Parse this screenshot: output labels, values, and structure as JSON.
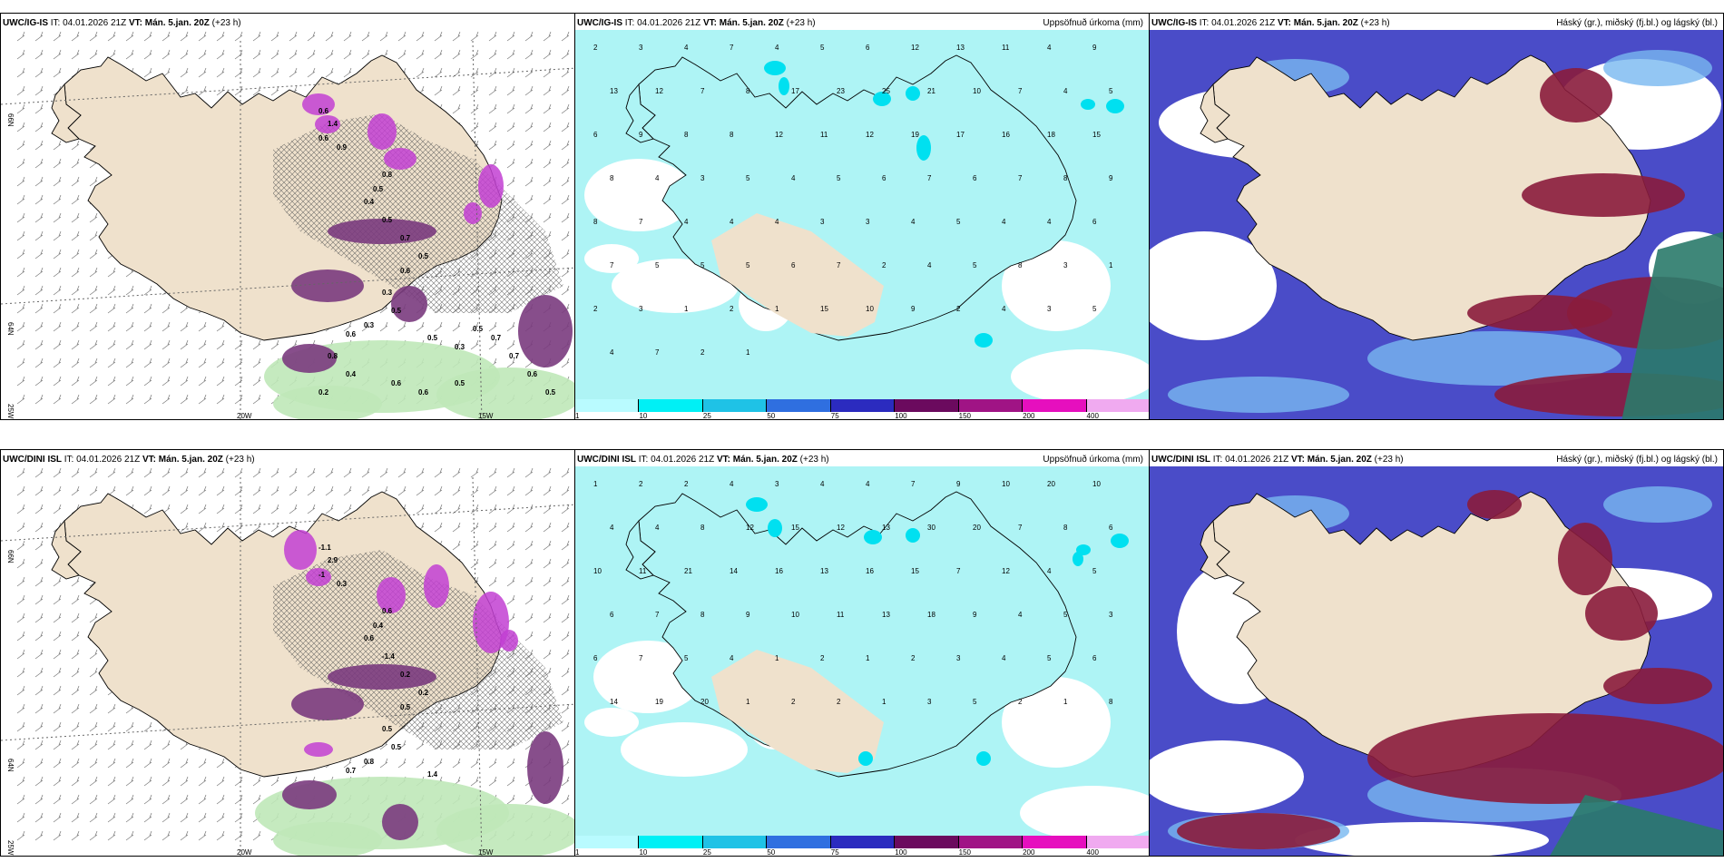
{
  "panels": {
    "top_wind": {
      "model": "UWC/IG-IS",
      "it": "IT: 04.01.2026 21Z",
      "vt": "VT: Mán. 5.jan. 20Z",
      "lead": "(+23 h)",
      "labels": [
        "66N",
        "64N",
        "25W",
        "20W",
        "15W"
      ],
      "values": [
        "0.6",
        "1.4",
        "0.6",
        "0.9",
        "0.8",
        "0.5",
        "0.4",
        "0.5",
        "0.7",
        "0.5",
        "0.6",
        "0.3",
        "0.5",
        "0.3",
        "0.6",
        "0.5",
        "0.3",
        "0.5",
        "0.7",
        "0.7",
        "0.6",
        "0.5",
        "0.8",
        "0.2",
        "0.4",
        "0.6",
        "0.6",
        "0.5"
      ]
    },
    "top_precip": {
      "model": "UWC/IG-IS",
      "it": "IT: 04.01.2026 21Z",
      "vt": "VT: Mán. 5.jan. 20Z",
      "lead": "(+23 h)",
      "title": "Uppsöfnuð úrkoma (mm)",
      "values": [
        "2",
        "3",
        "4",
        "7",
        "4",
        "5",
        "6",
        "12",
        "13",
        "11",
        "4",
        "9",
        "13",
        "12",
        "7",
        "8",
        "17",
        "23",
        "25",
        "21",
        "10",
        "7",
        "4",
        "5",
        "6",
        "9",
        "8",
        "8",
        "12",
        "11",
        "12",
        "19",
        "17",
        "16",
        "18",
        "15",
        "8",
        "4",
        "3",
        "5",
        "4",
        "5",
        "6",
        "7",
        "6",
        "7",
        "8",
        "9",
        "8",
        "7",
        "4",
        "4",
        "4",
        "3",
        "3",
        "4",
        "5",
        "4",
        "4",
        "6",
        "7",
        "5",
        "5",
        "5",
        "6",
        "7",
        "2",
        "4",
        "5",
        "8",
        "3",
        "1",
        "2",
        "3",
        "1",
        "2",
        "1",
        "15",
        "10",
        "9",
        "2",
        "4",
        "3",
        "5",
        "4",
        "7",
        "2",
        "1"
      ]
    },
    "top_cloud": {
      "model": "UWC/IG-IS",
      "it": "IT: 04.01.2026 21Z",
      "vt": "VT: Mán. 5.jan. 20Z",
      "lead": "(+23 h)",
      "title": "Háský (gr.), miðský (fj.bl.) og lágský (bl.)"
    },
    "bot_wind": {
      "model": "UWC/DINI ISL",
      "it": "IT: 04.01.2026 21Z",
      "vt": "VT: Mán. 5.jan. 20Z",
      "lead": "(+23 h)",
      "labels": [
        "66N",
        "64N",
        "25W",
        "20W",
        "15W"
      ],
      "values": [
        "-1.1",
        "2.9",
        "-1",
        "0.3",
        "0.6",
        "0.4",
        "0.6",
        "-1.4",
        "0.2",
        "0.2",
        "0.5",
        "0.5",
        "0.5",
        "0.8",
        "0.7",
        "1.4"
      ]
    },
    "bot_precip": {
      "model": "UWC/DINI ISL",
      "it": "IT: 04.01.2026 21Z",
      "vt": "VT: Mán. 5.jan. 20Z",
      "lead": "(+23 h)",
      "title": "Uppsöfnuð úrkoma (mm)",
      "values": [
        "1",
        "2",
        "2",
        "4",
        "3",
        "4",
        "4",
        "7",
        "9",
        "10",
        "20",
        "10",
        "4",
        "4",
        "8",
        "12",
        "15",
        "12",
        "13",
        "30",
        "20",
        "7",
        "8",
        "6",
        "10",
        "11",
        "21",
        "14",
        "16",
        "13",
        "16",
        "15",
        "7",
        "12",
        "4",
        "5",
        "6",
        "7",
        "8",
        "9",
        "10",
        "11",
        "13",
        "18",
        "9",
        "4",
        "5",
        "3",
        "6",
        "7",
        "5",
        "4",
        "1",
        "2",
        "1",
        "2",
        "3",
        "4",
        "5",
        "6",
        "14",
        "19",
        "20",
        "1",
        "2",
        "2",
        "1",
        "3",
        "5",
        "2",
        "1",
        "8"
      ]
    },
    "bot_cloud": {
      "model": "UWC/DINI ISL",
      "it": "IT: 04.01.2026 21Z",
      "vt": "VT: Mán. 5.jan. 20Z",
      "lead": "(+23 h)",
      "title": "Háský (gr.), miðský (fj.bl.) og lágský (bl.)"
    }
  },
  "legend": {
    "ticks": [
      "1",
      "10",
      "25",
      "50",
      "75",
      "100",
      "150",
      "200",
      "400"
    ],
    "colors": [
      "#b9fbff",
      "#00f0f5",
      "#1fc2e6",
      "#2f6fe0",
      "#2b2bbf",
      "#6b0a5e",
      "#a01485",
      "#e60fbe",
      "#f0aaf0"
    ]
  },
  "colors": {
    "land": "#efe1cc",
    "precip_light": "#aef4f5",
    "green": "#bfe8b8",
    "magenta": "#c23fd2",
    "purple": "#7a3b7e",
    "cloud_blue": "#4a4cc8",
    "cloud_lightblue": "#78b8f0",
    "cloud_red": "#8a1c3c",
    "cloud_teal": "#2a7a6a"
  }
}
